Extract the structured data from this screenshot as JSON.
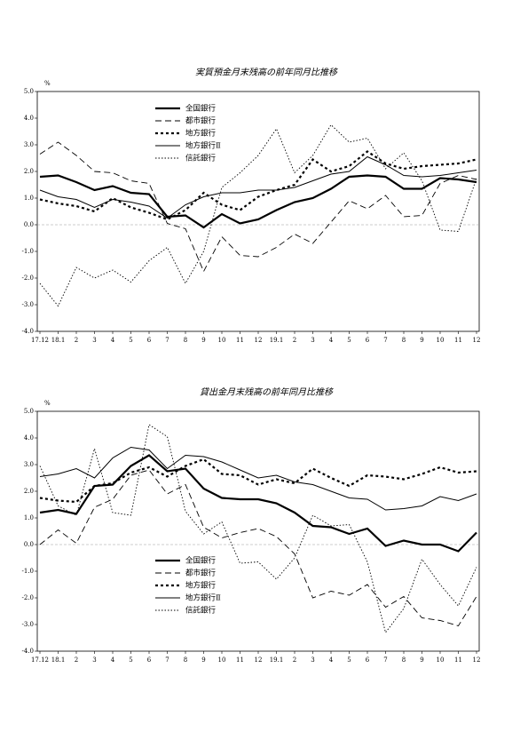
{
  "chart_data": [
    {
      "type": "line",
      "title": "実質預金月末残高の前年同月比推移",
      "y_unit": "%",
      "categories": [
        "17.12",
        "18.1",
        "2",
        "3",
        "4",
        "5",
        "6",
        "7",
        "8",
        "9",
        "10",
        "11",
        "12",
        "19.1",
        "2",
        "3",
        "4",
        "5",
        "6",
        "7",
        "8",
        "9",
        "10",
        "11",
        "12"
      ],
      "ylim": [
        -4,
        5
      ],
      "yticks": [
        {
          "value": -4,
          "label": "-4.0"
        },
        {
          "value": -3,
          "label": "-3.0"
        },
        {
          "value": -2,
          "label": "-2.0"
        },
        {
          "value": -1,
          "label": "-1.0"
        },
        {
          "value": 0,
          "label": "0.0"
        },
        {
          "value": 1,
          "label": "1.0"
        },
        {
          "value": 2,
          "label": "2.0"
        },
        {
          "value": 3,
          "label": "3.0"
        },
        {
          "value": 4,
          "label": "4.0"
        },
        {
          "value": 5,
          "label": "5.0"
        }
      ],
      "zero_line": true,
      "series": [
        {
          "name": "全国銀行",
          "color": "#000000",
          "style": "solid-thick",
          "values": [
            1.8,
            1.85,
            1.6,
            1.3,
            1.45,
            1.2,
            1.15,
            0.3,
            0.35,
            -0.1,
            0.4,
            0.05,
            0.2,
            0.55,
            0.85,
            1.0,
            1.35,
            1.8,
            1.85,
            1.8,
            1.35,
            1.35,
            1.75,
            1.7,
            1.6
          ]
        },
        {
          "name": "都市銀行",
          "color": "#000000",
          "style": "dashed",
          "values": [
            2.65,
            3.1,
            2.6,
            2.0,
            1.95,
            1.65,
            1.55,
            0.05,
            -0.15,
            -1.75,
            -0.45,
            -1.15,
            -1.2,
            -0.85,
            -0.35,
            -0.7,
            0.1,
            0.9,
            0.6,
            1.1,
            0.3,
            0.35,
            1.55,
            1.85,
            1.7
          ]
        },
        {
          "name": "地方銀行",
          "color": "#000000",
          "style": "dotted-thick",
          "values": [
            0.95,
            0.8,
            0.7,
            0.5,
            1.0,
            0.65,
            0.45,
            0.2,
            0.55,
            1.2,
            0.75,
            0.55,
            1.05,
            1.3,
            1.5,
            2.45,
            2.0,
            2.2,
            2.75,
            2.3,
            2.1,
            2.2,
            2.25,
            2.3,
            2.45
          ]
        },
        {
          "name": "地方銀行Ⅱ",
          "color": "#000000",
          "style": "solid",
          "values": [
            1.3,
            1.05,
            0.95,
            0.65,
            0.95,
            0.85,
            0.7,
            0.25,
            0.75,
            1.05,
            1.2,
            1.2,
            1.3,
            1.3,
            1.4,
            1.65,
            1.9,
            2.0,
            2.55,
            2.25,
            1.85,
            1.8,
            1.85,
            1.95,
            2.05
          ]
        },
        {
          "name": "信託銀行",
          "color": "#000000",
          "style": "dotted",
          "values": [
            -2.2,
            -3.05,
            -1.6,
            -2.0,
            -1.7,
            -2.15,
            -1.35,
            -0.85,
            -2.2,
            -1.0,
            1.4,
            1.95,
            2.6,
            3.6,
            1.95,
            2.6,
            3.75,
            3.1,
            3.25,
            2.1,
            2.7,
            1.65,
            -0.2,
            -0.25,
            1.75
          ]
        }
      ]
    },
    {
      "type": "line",
      "title": "貸出金月末残高の前年同月比推移",
      "y_unit": "%",
      "categories": [
        "17.12",
        "18.1",
        "2",
        "3",
        "4",
        "5",
        "6",
        "7",
        "8",
        "9",
        "10",
        "11",
        "12",
        "19.1",
        "2",
        "3",
        "4",
        "5",
        "6",
        "7",
        "8",
        "9",
        "10",
        "11",
        "12"
      ],
      "ylim": [
        -4,
        5
      ],
      "yticks": [
        {
          "value": -4,
          "label": "-4.0"
        },
        {
          "value": -3,
          "label": "-3.0"
        },
        {
          "value": -2,
          "label": "-2.0"
        },
        {
          "value": -1,
          "label": "-1.0"
        },
        {
          "value": 0,
          "label": "0.0"
        },
        {
          "value": 1,
          "label": "1.0"
        },
        {
          "value": 2,
          "label": "2.0"
        },
        {
          "value": 3,
          "label": "3.0"
        },
        {
          "value": 4,
          "label": "4.0"
        },
        {
          "value": 5,
          "label": "5.0"
        }
      ],
      "zero_line": true,
      "series": [
        {
          "name": "全国銀行",
          "color": "#000000",
          "style": "solid-thick",
          "values": [
            1.2,
            1.3,
            1.15,
            2.2,
            2.25,
            2.95,
            3.35,
            2.75,
            2.85,
            2.1,
            1.75,
            1.7,
            1.7,
            1.55,
            1.2,
            0.7,
            0.65,
            0.4,
            0.6,
            -0.05,
            0.15,
            0.0,
            0.0,
            -0.25,
            0.45
          ]
        },
        {
          "name": "都市銀行",
          "color": "#000000",
          "style": "dashed",
          "values": [
            0.0,
            0.55,
            0.05,
            1.4,
            1.7,
            2.6,
            2.8,
            1.9,
            2.25,
            0.65,
            0.25,
            0.45,
            0.6,
            0.3,
            -0.35,
            -2.0,
            -1.75,
            -1.9,
            -1.5,
            -2.35,
            -1.95,
            -2.75,
            -2.85,
            -3.05,
            -1.95
          ]
        },
        {
          "name": "地方銀行",
          "color": "#000000",
          "style": "dotted-thick",
          "values": [
            1.75,
            1.65,
            1.6,
            2.2,
            2.3,
            2.7,
            2.9,
            2.55,
            2.95,
            3.2,
            2.65,
            2.6,
            2.25,
            2.45,
            2.3,
            2.85,
            2.5,
            2.2,
            2.6,
            2.55,
            2.45,
            2.65,
            2.9,
            2.7,
            2.75
          ]
        },
        {
          "name": "地方銀行Ⅱ",
          "color": "#000000",
          "style": "solid",
          "values": [
            2.55,
            2.65,
            2.85,
            2.5,
            3.25,
            3.65,
            3.55,
            2.85,
            3.35,
            3.3,
            3.1,
            2.8,
            2.5,
            2.6,
            2.35,
            2.25,
            2.0,
            1.75,
            1.7,
            1.3,
            1.35,
            1.45,
            1.8,
            1.65,
            1.9
          ]
        },
        {
          "name": "信託銀行",
          "color": "#000000",
          "style": "dotted",
          "values": [
            2.95,
            1.45,
            1.1,
            3.6,
            1.2,
            1.1,
            4.5,
            4.05,
            1.25,
            0.4,
            0.85,
            -0.7,
            -0.65,
            -1.3,
            -0.5,
            1.1,
            0.7,
            0.75,
            -0.65,
            -3.3,
            -2.4,
            -0.55,
            -1.5,
            -2.3,
            -0.85
          ]
        }
      ]
    }
  ]
}
